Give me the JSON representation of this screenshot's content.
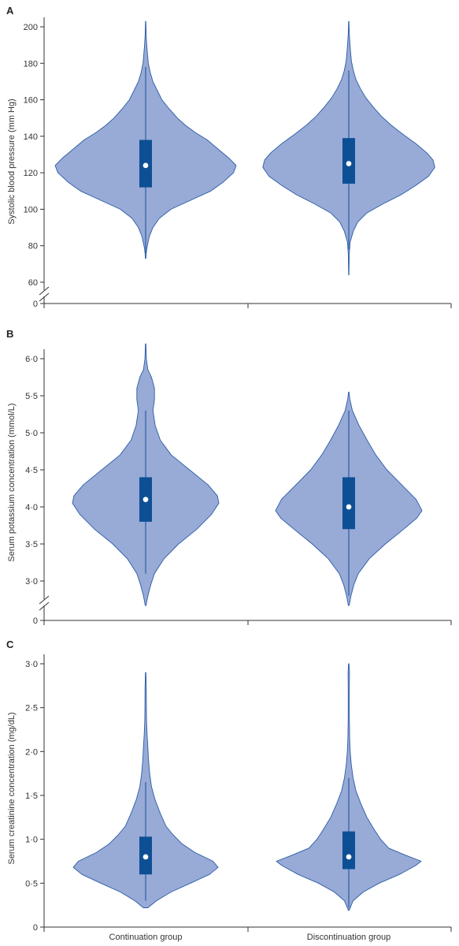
{
  "colors": {
    "violin_fill": "#98aad6",
    "violin_stroke": "#2b5ca6",
    "box_fill": "#0d4f94",
    "median_dot": "#ffffff",
    "axis": "#333333"
  },
  "chart_data": [
    {
      "type": "violin",
      "panel": "A",
      "ylabel": "Systolic blood pressure (mm Hg)",
      "yticks": [
        "200",
        "180",
        "160",
        "140",
        "120",
        "100",
        "80",
        "60",
        "0"
      ],
      "axis_break": true,
      "ylim": [
        55,
        205
      ],
      "categories": [
        "Continuation group",
        "Discontinuation group"
      ],
      "groups": [
        {
          "name": "Continuation group",
          "median": 124,
          "q1": 112,
          "q3": 138,
          "whisker_low": 76,
          "whisker_high": 178,
          "min": 73,
          "max": 203,
          "density": [
            [
              73,
              0.003
            ],
            [
              78,
              0.01
            ],
            [
              85,
              0.04
            ],
            [
              90,
              0.08
            ],
            [
              95,
              0.15
            ],
            [
              100,
              0.28
            ],
            [
              105,
              0.5
            ],
            [
              110,
              0.72
            ],
            [
              115,
              0.86
            ],
            [
              120,
              0.97
            ],
            [
              124,
              1.0
            ],
            [
              128,
              0.92
            ],
            [
              133,
              0.8
            ],
            [
              138,
              0.68
            ],
            [
              142,
              0.55
            ],
            [
              146,
              0.44
            ],
            [
              150,
              0.35
            ],
            [
              155,
              0.26
            ],
            [
              160,
              0.18
            ],
            [
              165,
              0.13
            ],
            [
              170,
              0.08
            ],
            [
              175,
              0.05
            ],
            [
              180,
              0.03
            ],
            [
              185,
              0.02
            ],
            [
              190,
              0.012
            ],
            [
              195,
              0.006
            ],
            [
              203,
              0.002
            ]
          ]
        },
        {
          "name": "Discontinuation group",
          "median": 125,
          "q1": 114,
          "q3": 139,
          "whisker_low": 78,
          "whisker_high": 176,
          "min": 64,
          "max": 203,
          "density": [
            [
              64,
              0.002
            ],
            [
              75,
              0.005
            ],
            [
              82,
              0.015
            ],
            [
              88,
              0.05
            ],
            [
              93,
              0.1
            ],
            [
              98,
              0.2
            ],
            [
              103,
              0.38
            ],
            [
              108,
              0.58
            ],
            [
              113,
              0.74
            ],
            [
              118,
              0.88
            ],
            [
              123,
              0.95
            ],
            [
              127,
              0.93
            ],
            [
              131,
              0.86
            ],
            [
              136,
              0.74
            ],
            [
              141,
              0.6
            ],
            [
              146,
              0.47
            ],
            [
              151,
              0.36
            ],
            [
              156,
              0.27
            ],
            [
              161,
              0.19
            ],
            [
              166,
              0.13
            ],
            [
              171,
              0.08
            ],
            [
              176,
              0.05
            ],
            [
              181,
              0.03
            ],
            [
              186,
              0.02
            ],
            [
              191,
              0.012
            ],
            [
              196,
              0.006
            ],
            [
              203,
              0.002
            ]
          ]
        }
      ]
    },
    {
      "type": "violin",
      "panel": "B",
      "ylabel": "Serum potassium concentration (mmol/L)",
      "yticks": [
        "6·0",
        "5·5",
        "5·0",
        "4·5",
        "4·0",
        "3·5",
        "3·0",
        "0"
      ],
      "axis_break": true,
      "ylim": [
        2.65,
        6.25
      ],
      "categories": [
        "Continuation group",
        "Discontinuation group"
      ],
      "groups": [
        {
          "name": "Continuation group",
          "median": 4.1,
          "q1": 3.8,
          "q3": 4.4,
          "whisker_low": 3.1,
          "whisker_high": 5.3,
          "min": 2.67,
          "max": 6.2,
          "density": [
            [
              2.67,
              0.005
            ],
            [
              2.8,
              0.03
            ],
            [
              2.95,
              0.07
            ],
            [
              3.1,
              0.12
            ],
            [
              3.3,
              0.25
            ],
            [
              3.5,
              0.45
            ],
            [
              3.7,
              0.7
            ],
            [
              3.9,
              0.9
            ],
            [
              4.05,
              1.0
            ],
            [
              4.15,
              0.98
            ],
            [
              4.3,
              0.85
            ],
            [
              4.5,
              0.6
            ],
            [
              4.7,
              0.35
            ],
            [
              4.9,
              0.2
            ],
            [
              5.1,
              0.13
            ],
            [
              5.3,
              0.1
            ],
            [
              5.45,
              0.12
            ],
            [
              5.6,
              0.12
            ],
            [
              5.75,
              0.08
            ],
            [
              5.85,
              0.03
            ],
            [
              6.0,
              0.01
            ],
            [
              6.2,
              0.003
            ]
          ]
        },
        {
          "name": "Discontinuation group",
          "median": 4.0,
          "q1": 3.7,
          "q3": 4.4,
          "whisker_low": 2.8,
          "whisker_high": 5.3,
          "min": 2.67,
          "max": 5.55,
          "density": [
            [
              2.67,
              0.005
            ],
            [
              2.8,
              0.03
            ],
            [
              2.95,
              0.07
            ],
            [
              3.1,
              0.13
            ],
            [
              3.3,
              0.28
            ],
            [
              3.5,
              0.5
            ],
            [
              3.7,
              0.75
            ],
            [
              3.85,
              0.93
            ],
            [
              3.95,
              1.0
            ],
            [
              4.1,
              0.92
            ],
            [
              4.3,
              0.72
            ],
            [
              4.5,
              0.52
            ],
            [
              4.7,
              0.37
            ],
            [
              4.9,
              0.25
            ],
            [
              5.1,
              0.14
            ],
            [
              5.3,
              0.05
            ],
            [
              5.45,
              0.015
            ],
            [
              5.55,
              0.003
            ]
          ]
        }
      ]
    },
    {
      "type": "violin",
      "panel": "C",
      "ylabel": "Serum creatinine concentration (mg/dL)",
      "yticks": [
        "3·0",
        "2·5",
        "2·0",
        "1·5",
        "1·0",
        "0·5",
        "0"
      ],
      "axis_break": false,
      "ylim": [
        0,
        3.1
      ],
      "categories": [
        "Continuation group",
        "Discontinuation group"
      ],
      "groups": [
        {
          "name": "Continuation group",
          "median": 0.8,
          "q1": 0.6,
          "q3": 1.03,
          "whisker_low": 0.3,
          "whisker_high": 1.65,
          "min": 0.22,
          "max": 2.9,
          "density": [
            [
              0.22,
              0.03
            ],
            [
              0.3,
              0.15
            ],
            [
              0.4,
              0.35
            ],
            [
              0.5,
              0.62
            ],
            [
              0.6,
              0.88
            ],
            [
              0.68,
              1.0
            ],
            [
              0.75,
              0.93
            ],
            [
              0.85,
              0.68
            ],
            [
              0.95,
              0.5
            ],
            [
              1.05,
              0.38
            ],
            [
              1.15,
              0.28
            ],
            [
              1.3,
              0.2
            ],
            [
              1.45,
              0.13
            ],
            [
              1.6,
              0.08
            ],
            [
              1.75,
              0.055
            ],
            [
              1.9,
              0.04
            ],
            [
              2.05,
              0.03
            ],
            [
              2.2,
              0.02
            ],
            [
              2.35,
              0.012
            ],
            [
              2.5,
              0.01
            ],
            [
              2.7,
              0.009
            ],
            [
              2.9,
              0.003
            ]
          ]
        },
        {
          "name": "Discontinuation group",
          "median": 0.8,
          "q1": 0.66,
          "q3": 1.09,
          "whisker_low": 0.22,
          "whisker_high": 1.7,
          "min": 0.19,
          "max": 3.0,
          "density": [
            [
              0.19,
              0.005
            ],
            [
              0.3,
              0.06
            ],
            [
              0.4,
              0.2
            ],
            [
              0.5,
              0.42
            ],
            [
              0.6,
              0.7
            ],
            [
              0.7,
              0.92
            ],
            [
              0.75,
              1.0
            ],
            [
              0.82,
              0.78
            ],
            [
              0.9,
              0.55
            ],
            [
              1.0,
              0.44
            ],
            [
              1.1,
              0.36
            ],
            [
              1.25,
              0.25
            ],
            [
              1.4,
              0.17
            ],
            [
              1.55,
              0.1
            ],
            [
              1.7,
              0.06
            ],
            [
              1.85,
              0.035
            ],
            [
              2.0,
              0.02
            ],
            [
              2.15,
              0.012
            ],
            [
              2.4,
              0.008
            ],
            [
              2.7,
              0.008
            ],
            [
              2.9,
              0.01
            ],
            [
              3.0,
              0.003
            ]
          ]
        }
      ]
    }
  ]
}
